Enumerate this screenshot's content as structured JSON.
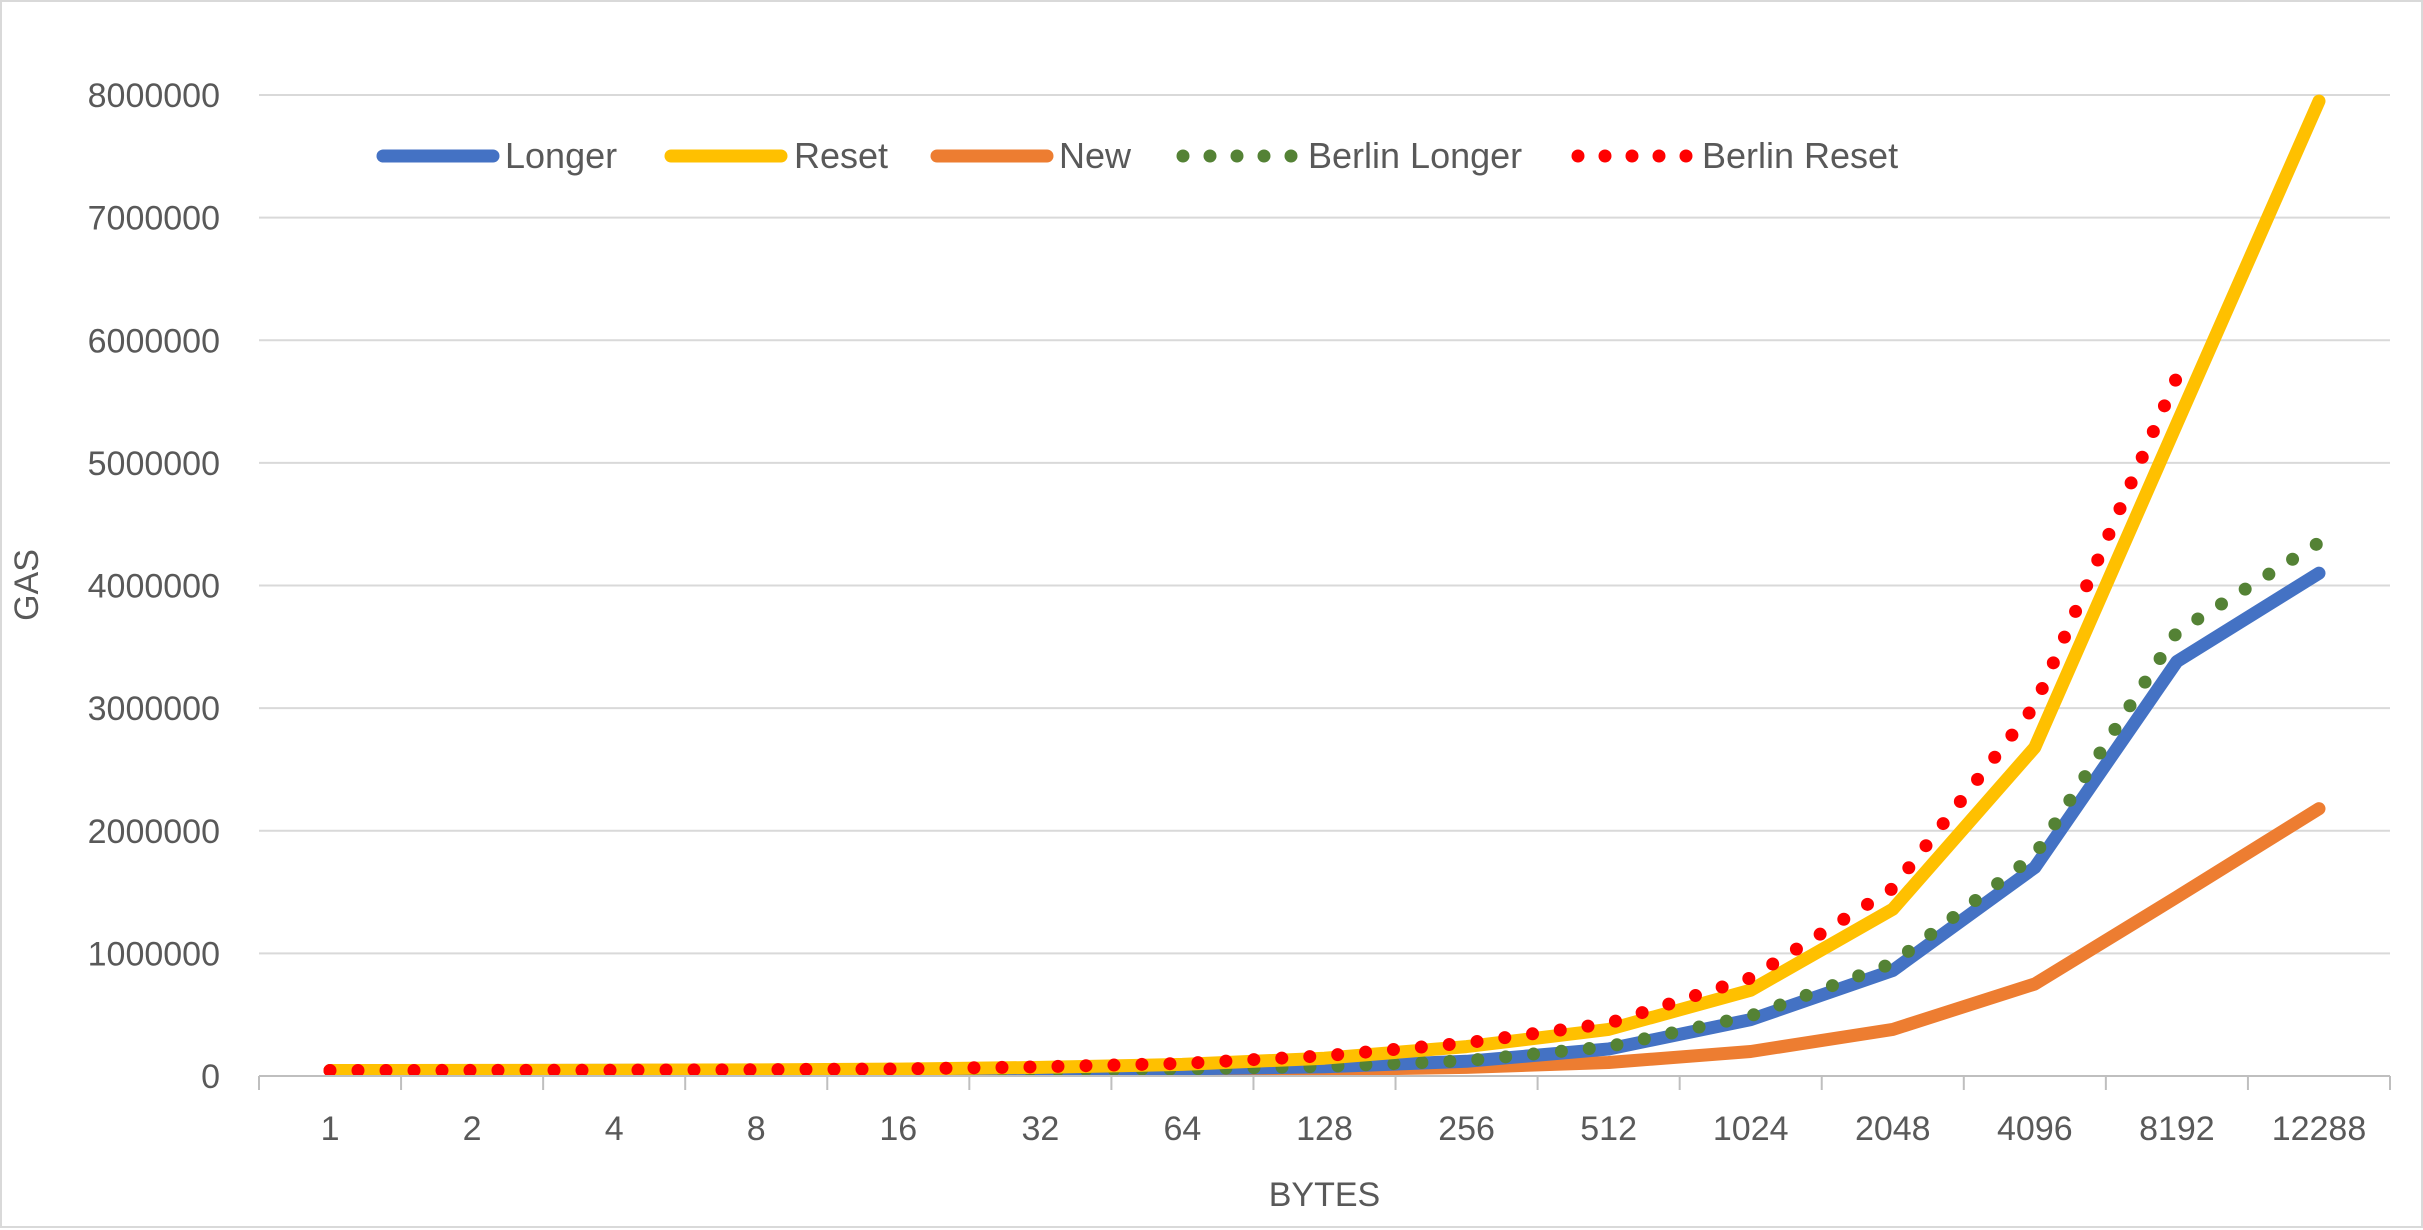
{
  "chart_data": {
    "type": "line",
    "title": "",
    "xlabel": "BYTES",
    "ylabel": "GAS",
    "categories": [
      "1",
      "2",
      "4",
      "8",
      "16",
      "32",
      "64",
      "128",
      "256",
      "512",
      "1024",
      "2048",
      "4096",
      "8192",
      "12288"
    ],
    "y_ticks": [
      "0",
      "1000000",
      "2000000",
      "3000000",
      "4000000",
      "5000000",
      "6000000",
      "7000000",
      "8000000"
    ],
    "ylim": [
      0,
      8000000
    ],
    "grid": true,
    "legend_position": "top-left",
    "series": [
      {
        "name": "Longer",
        "style": "solid",
        "color": "#4472c4",
        "values": [
          45000,
          45000,
          45500,
          46000,
          47000,
          50000,
          58000,
          75000,
          120000,
          220000,
          460000,
          860000,
          1700000,
          3380000,
          4100000
        ]
      },
      {
        "name": "Reset",
        "style": "solid",
        "color": "#ffc000",
        "values": [
          45000,
          46000,
          47000,
          50000,
          56000,
          70000,
          95000,
          145000,
          240000,
          380000,
          700000,
          1360000,
          2680000,
          5320000,
          7950000
        ]
      },
      {
        "name": "New",
        "style": "solid",
        "color": "#ed7d31",
        "values": [
          45000,
          45000,
          45000,
          45000,
          45500,
          46000,
          48000,
          52000,
          70000,
          110000,
          200000,
          380000,
          750000,
          1460000,
          2180000
        ]
      },
      {
        "name": "Berlin Longer",
        "style": "dotted",
        "color": "#548235",
        "values": [
          45000,
          45000,
          45500,
          46000,
          47000,
          50000,
          58000,
          78000,
          125000,
          240000,
          490000,
          920000,
          1800000,
          3620000,
          4350000
        ]
      },
      {
        "name": "Berlin Reset",
        "style": "dotted",
        "color": "#ff0000",
        "values": [
          45000,
          46000,
          47500,
          51000,
          58000,
          75000,
          103000,
          165000,
          270000,
          430000,
          800000,
          1530000,
          3020000,
          5700000,
          null
        ]
      }
    ]
  }
}
